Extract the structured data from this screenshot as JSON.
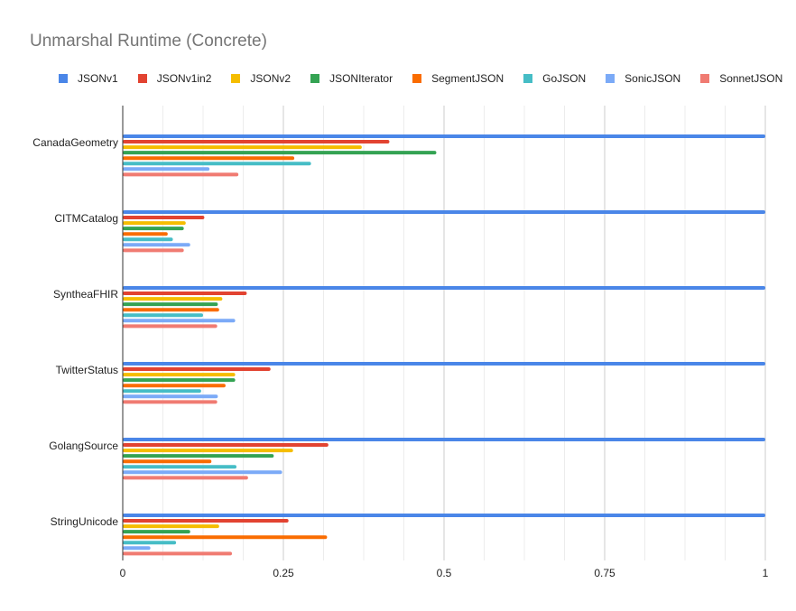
{
  "chart_data": {
    "type": "bar",
    "orientation": "horizontal",
    "title": "Unmarshal Runtime (Concrete)",
    "xlabel": "",
    "ylabel": "",
    "xlim": [
      0,
      1
    ],
    "x_ticks": [
      "0",
      "0.25",
      "0.5",
      "0.75",
      "1"
    ],
    "grid": true,
    "legend_position": "top",
    "categories": [
      "CanadaGeometry",
      "CITMCatalog",
      "SyntheaFHIR",
      "TwitterStatus",
      "GolangSource",
      "StringUnicode"
    ],
    "series": [
      {
        "name": "JSONv1",
        "color": "#4a86e8",
        "values": [
          1.0,
          1.0,
          1.0,
          1.0,
          1.0,
          1.0
        ]
      },
      {
        "name": "JSONv1in2",
        "color": "#e24331",
        "values": [
          0.415,
          0.127,
          0.193,
          0.23,
          0.32,
          0.258
        ]
      },
      {
        "name": "JSONv2",
        "color": "#f5bd00",
        "values": [
          0.372,
          0.098,
          0.155,
          0.175,
          0.265,
          0.15
        ]
      },
      {
        "name": "JSONIterator",
        "color": "#34a353",
        "values": [
          0.488,
          0.095,
          0.148,
          0.175,
          0.235,
          0.105
        ]
      },
      {
        "name": "SegmentJSON",
        "color": "#fa6c00",
        "values": [
          0.267,
          0.07,
          0.15,
          0.16,
          0.138,
          0.318
        ]
      },
      {
        "name": "GoJSON",
        "color": "#46bdc6",
        "values": [
          0.293,
          0.078,
          0.125,
          0.122,
          0.177,
          0.083
        ]
      },
      {
        "name": "SonicJSON",
        "color": "#7baaf7",
        "values": [
          0.135,
          0.105,
          0.175,
          0.148,
          0.248,
          0.043
        ]
      },
      {
        "name": "SonnetJSON",
        "color": "#f07b72",
        "values": [
          0.18,
          0.095,
          0.147,
          0.147,
          0.195,
          0.17
        ]
      }
    ]
  }
}
